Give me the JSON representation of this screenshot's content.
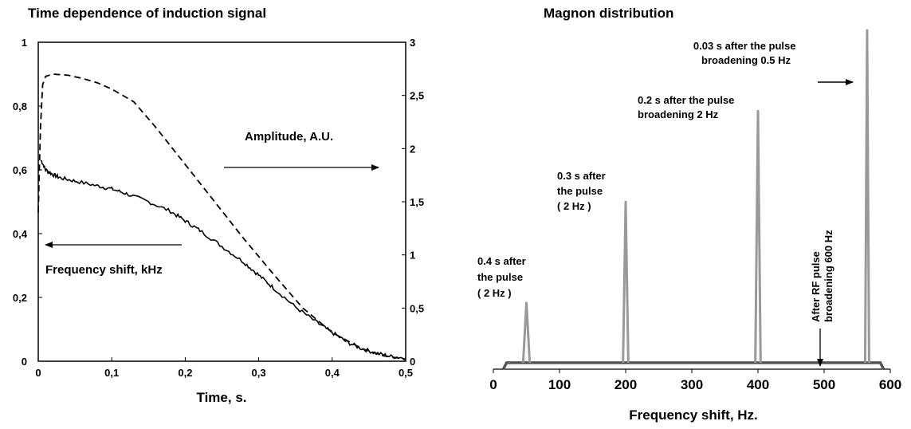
{
  "chart_data": [
    {
      "type": "line",
      "title": "Time dependence of induction signal",
      "xlabel": "Time, s.",
      "xlim": [
        0,
        0.5
      ],
      "ylim_left": [
        0,
        1
      ],
      "ylim_right": [
        0,
        3
      ],
      "x_ticks": [
        "0",
        "0,1",
        "0,2",
        "0,3",
        "0,4",
        "0,5"
      ],
      "y_ticks_left": [
        "0",
        "0,2",
        "0,4",
        "0,6",
        "0,8",
        "1"
      ],
      "y_ticks_right": [
        "0",
        "0,5",
        "1",
        "1,5",
        "2",
        "2,5",
        "3"
      ],
      "grid": false,
      "series": [
        {
          "name": "Frequency shift, kHz",
          "axis": "left",
          "style": "solid",
          "x": [
            0.004,
            0.01,
            0.02,
            0.03,
            0.05,
            0.08,
            0.1,
            0.12,
            0.15,
            0.18,
            0.2,
            0.22,
            0.25,
            0.28,
            0.3,
            0.32,
            0.35,
            0.38,
            0.4,
            0.42,
            0.44,
            0.46,
            0.48,
            0.5
          ],
          "y": [
            0.63,
            0.6,
            0.585,
            0.575,
            0.565,
            0.55,
            0.54,
            0.525,
            0.5,
            0.47,
            0.44,
            0.41,
            0.36,
            0.31,
            0.27,
            0.23,
            0.17,
            0.12,
            0.09,
            0.06,
            0.04,
            0.025,
            0.015,
            0.01
          ]
        },
        {
          "name": "Amplitude, A.U.",
          "axis": "right",
          "style": "dashed",
          "x": [
            0.0,
            0.003,
            0.006,
            0.01,
            0.02,
            0.04,
            0.06,
            0.08,
            0.1,
            0.13,
            0.16,
            0.2,
            0.24,
            0.28,
            0.32,
            0.36,
            0.4,
            0.44,
            0.47,
            0.5
          ],
          "y": [
            1.4,
            2.2,
            2.6,
            2.68,
            2.7,
            2.69,
            2.66,
            2.62,
            2.56,
            2.44,
            2.2,
            1.85,
            1.5,
            1.15,
            0.82,
            0.5,
            0.27,
            0.12,
            0.05,
            0.02
          ]
        }
      ],
      "annotations": [
        {
          "text": "Amplitude, A.U.",
          "arrow": "right"
        },
        {
          "text": "Frequency shift, kHz",
          "arrow": "left"
        }
      ]
    },
    {
      "type": "line",
      "title": "Magnon distribution",
      "xlabel": "Frequency shift, Hz.",
      "xlim": [
        0,
        600
      ],
      "x_ticks": [
        "0",
        "100",
        "200",
        "300",
        "400",
        "500",
        "600"
      ],
      "grid": false,
      "series": [
        {
          "style": "solid-gray",
          "peaks": [
            {
              "x": 50,
              "height": 0.19,
              "width": 10
            },
            {
              "x": 200,
              "height": 0.49,
              "width": 8
            },
            {
              "x": 400,
              "height": 0.76,
              "width": 8
            },
            {
              "x": 565,
              "height": 1.0,
              "width": 6
            }
          ],
          "baseline": {
            "x_start": 20,
            "x_end": 585,
            "level": 0.012
          }
        }
      ],
      "annotations": [
        {
          "lines": [
            "0.4 s after",
            "the pulse",
            "( 2 Hz )"
          ]
        },
        {
          "lines": [
            "0.3 s after",
            "the pulse",
            "( 2 Hz )"
          ]
        },
        {
          "lines": [
            "0.2 s after the pulse",
            "broadening 2 Hz"
          ]
        },
        {
          "lines": [
            "0.03 s after the pulse",
            "broadening 0.5 Hz"
          ]
        },
        {
          "lines": [
            "After RF pulse",
            "broadening 600 Hz"
          ]
        }
      ]
    }
  ]
}
